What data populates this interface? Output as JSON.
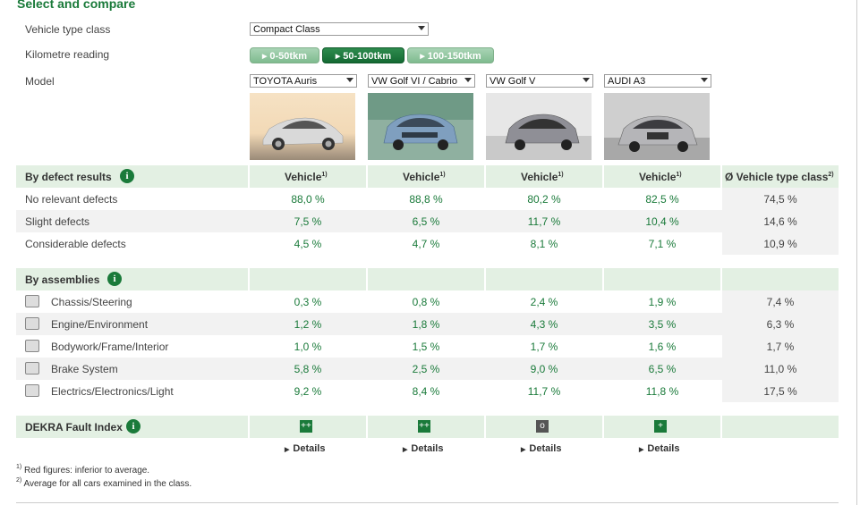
{
  "heading": "Select and compare",
  "form": {
    "vehicle_type_label": "Vehicle type class",
    "vehicle_type_value": "Compact Class",
    "km_label": "Kilometre reading",
    "km_options": [
      "0-50tkm",
      "50-100tkm",
      "100-150tkm"
    ],
    "km_active_index": 1,
    "model_label": "Model",
    "models": [
      "TOYOTA Auris",
      "VW Golf VI / Cabrio",
      "VW Golf V",
      "AUDI A3"
    ]
  },
  "defects": {
    "section_title": "By defect results",
    "col_header": "Vehicle",
    "col_sup": "1)",
    "avg_header": "Ø Vehicle type class",
    "avg_sup": "2)",
    "rows": [
      {
        "label": "No relevant defects",
        "values": [
          "88,0 %",
          "88,8 %",
          "80,2 %",
          "82,5 %"
        ],
        "avg": "74,5 %"
      },
      {
        "label": "Slight defects",
        "values": [
          "7,5 %",
          "6,5 %",
          "11,7 %",
          "10,4 %"
        ],
        "avg": "14,6 %"
      },
      {
        "label": "Considerable defects",
        "values": [
          "4,5 %",
          "4,7 %",
          "8,1 %",
          "7,1 %"
        ],
        "avg": "10,9 %"
      }
    ]
  },
  "assemblies": {
    "section_title": "By assemblies",
    "rows": [
      {
        "label": "Chassis/Steering",
        "icon": "chassis-icon",
        "values": [
          "0,3 %",
          "0,8 %",
          "2,4 %",
          "1,9 %"
        ],
        "avg": "7,4 %"
      },
      {
        "label": "Engine/Environment",
        "icon": "engine-icon",
        "values": [
          "1,2 %",
          "1,8 %",
          "4,3 %",
          "3,5 %"
        ],
        "avg": "6,3 %"
      },
      {
        "label": "Bodywork/Frame/Interior",
        "icon": "bodywork-icon",
        "values": [
          "1,0 %",
          "1,5 %",
          "1,7 %",
          "1,6 %"
        ],
        "avg": "1,7 %"
      },
      {
        "label": "Brake System",
        "icon": "brake-icon",
        "values": [
          "5,8 %",
          "2,5 %",
          "9,0 %",
          "6,5 %"
        ],
        "avg": "11,0 %"
      },
      {
        "label": "Electrics/Electronics/Light",
        "icon": "battery-icon",
        "values": [
          "9,2 %",
          "8,4 %",
          "11,7 %",
          "11,8 %"
        ],
        "avg": "17,5 %"
      }
    ]
  },
  "fault_index": {
    "title": "DEKRA Fault Index",
    "symbols": [
      "++",
      "++",
      "o",
      "+"
    ],
    "symbol_colors": [
      "#1a7a3a",
      "#1a7a3a",
      "#555555",
      "#1a7a3a"
    ],
    "details_label": "Details"
  },
  "footnotes": [
    {
      "mark": "1)",
      "text": "Red figures: inferior to average."
    },
    {
      "mark": "2)",
      "text": "Average for all cars examined in the class."
    }
  ],
  "colors": {
    "accent": "#1a7a3a",
    "band": "#f2f2f2",
    "header_band": "#e3f0e3"
  }
}
